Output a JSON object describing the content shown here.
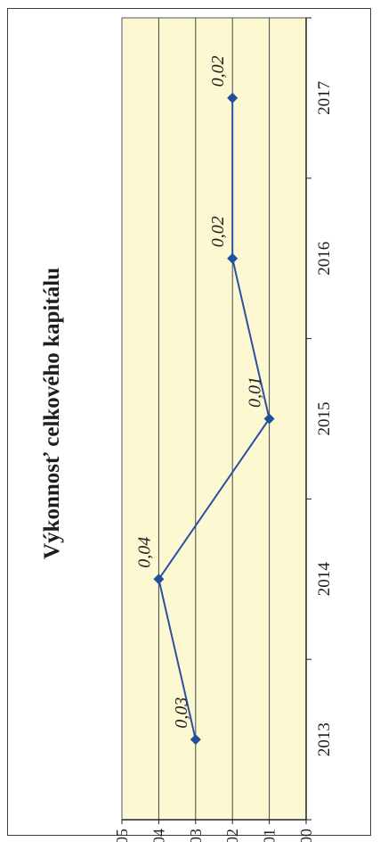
{
  "chart_data": {
    "type": "line",
    "title": "Výkonnosť celkového kapitálu",
    "xlabel": "",
    "ylabel": "",
    "categories": [
      "2013",
      "2014",
      "2015",
      "2016",
      "2017"
    ],
    "series": [
      {
        "values": [
          0.03,
          0.04,
          0.01,
          0.02,
          0.02
        ]
      }
    ],
    "data_labels": [
      "0,03",
      "0,04",
      "0,01",
      "0,02",
      "0,02"
    ],
    "y_ticks": [
      "0,00",
      "0,01",
      "0,02",
      "0,03",
      "0,04",
      "0,05"
    ],
    "ylim": [
      0,
      0.05
    ],
    "grid": true,
    "legend": "none",
    "orientation": "rotated 90° clockwise",
    "colors": {
      "plot_background": "#fbf8d2",
      "line": "#2d4fa3",
      "marker": "#1f4f9e",
      "grid": "#444444"
    }
  }
}
